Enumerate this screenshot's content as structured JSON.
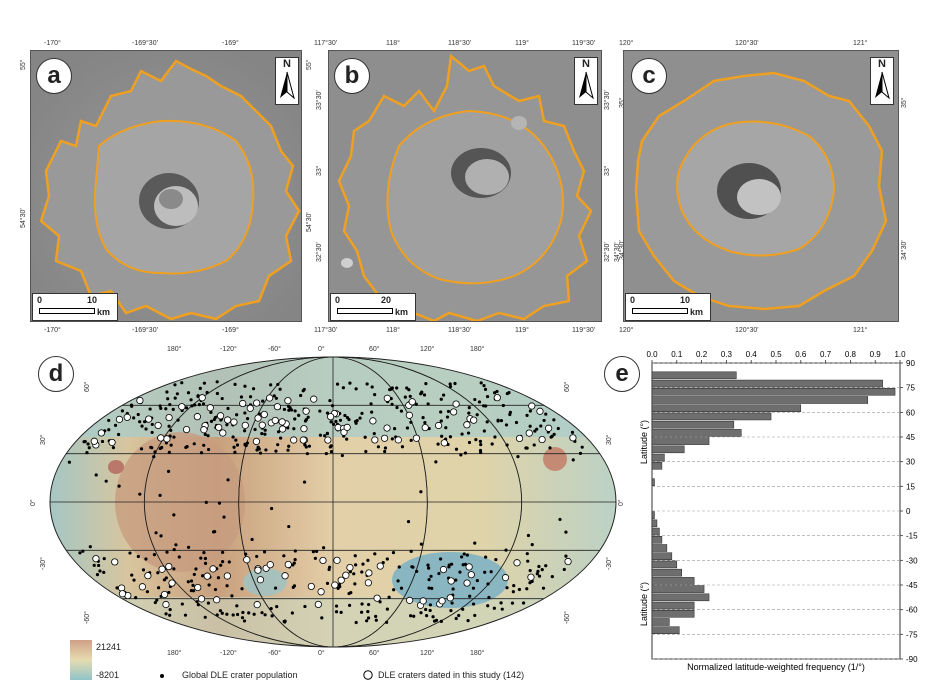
{
  "panels": {
    "a": {
      "letter": "a",
      "top_ticks": [
        "-170°",
        "-169°30'",
        "-169°"
      ],
      "bottom_ticks": [
        "-170°",
        "-169°30'",
        "-169°"
      ],
      "left_ticks": [
        "55°",
        "54°30'"
      ],
      "scale": {
        "zero": "0",
        "value": "10",
        "unit": "km"
      },
      "north": "N"
    },
    "b": {
      "letter": "b",
      "top_ticks": [
        "117°30'",
        "118°",
        "118°30'",
        "119°",
        "119°30'"
      ],
      "bottom_ticks": [
        "117°30'",
        "118°",
        "118°30'",
        "119°",
        "119°30'"
      ],
      "left_ticks": [
        "55°",
        "33°30'",
        "33°",
        "54°30'",
        "32°30'"
      ],
      "right_ticks": [
        "33°30'",
        "33°",
        "32°30'",
        "34°30'"
      ],
      "scale": {
        "zero": "0",
        "value": "20",
        "unit": "km"
      },
      "north": "N"
    },
    "c": {
      "letter": "c",
      "top_ticks": [
        "120°",
        "120°30'",
        "121°"
      ],
      "bottom_ticks": [
        "120°",
        "120°30'",
        "121°"
      ],
      "left_ticks": [
        "35°",
        "34°30'"
      ],
      "right_ticks": [
        "35°",
        "34°30'"
      ],
      "scale": {
        "zero": "0",
        "value": "10",
        "unit": "km"
      },
      "north": "N"
    },
    "d": {
      "letter": "d",
      "top_lon_ticks": [
        "180°",
        "-120°",
        "-60°",
        "0°",
        "60°",
        "120°",
        "180°"
      ],
      "bottom_lon_ticks": [
        "180°",
        "-120°",
        "-60°",
        "0°",
        "60°",
        "120°",
        "180°"
      ],
      "left_lat_ticks": [
        "60°",
        "30°",
        "0°",
        "-30°",
        "-60°"
      ],
      "right_lat_ticks": [
        "60°",
        "30°",
        "0°",
        "-30°",
        "-60°"
      ],
      "elevation_max": "21241",
      "elevation_min": "-8201",
      "legend_global": "Global DLE crater population",
      "legend_dated": "DLE craters dated in this study (142)"
    },
    "e": {
      "letter": "e"
    }
  },
  "chart_data": {
    "type": "bar",
    "orientation": "horizontal",
    "xlabel": "Normalized latitude-weighted frequency (1/°)",
    "ylabel": "Latitude (°)",
    "xlim": [
      0,
      1.0
    ],
    "ylim": [
      -90,
      90
    ],
    "x_ticks": [
      "0.0",
      "0.1",
      "0.2",
      "0.3",
      "0.4",
      "0.5",
      "0.6",
      "0.7",
      "0.8",
      "0.9",
      "1.0"
    ],
    "y_ticks": [
      "90",
      "75",
      "60",
      "45",
      "30",
      "15",
      "0",
      "-15",
      "-30",
      "-45",
      "-60",
      "-75",
      "-90"
    ],
    "bin_width": 5,
    "bin_lower": [
      80,
      75,
      70,
      65,
      60,
      55,
      50,
      45,
      40,
      35,
      30,
      25,
      20,
      15,
      10,
      5,
      0,
      -5,
      -10,
      -15,
      -20,
      -25,
      -30,
      -35,
      -40,
      -45,
      -50,
      -55,
      -60,
      -65,
      -70,
      -75,
      -80
    ],
    "values": [
      0.34,
      0.93,
      0.98,
      0.87,
      0.6,
      0.48,
      0.33,
      0.36,
      0.23,
      0.13,
      0.05,
      0.04,
      0.0,
      0.01,
      0.0,
      0.0,
      0.0,
      0.01,
      0.02,
      0.03,
      0.04,
      0.06,
      0.08,
      0.1,
      0.12,
      0.17,
      0.21,
      0.23,
      0.17,
      0.17,
      0.07,
      0.11,
      0.0
    ],
    "grid": "horizontal dashed at tick marks"
  }
}
